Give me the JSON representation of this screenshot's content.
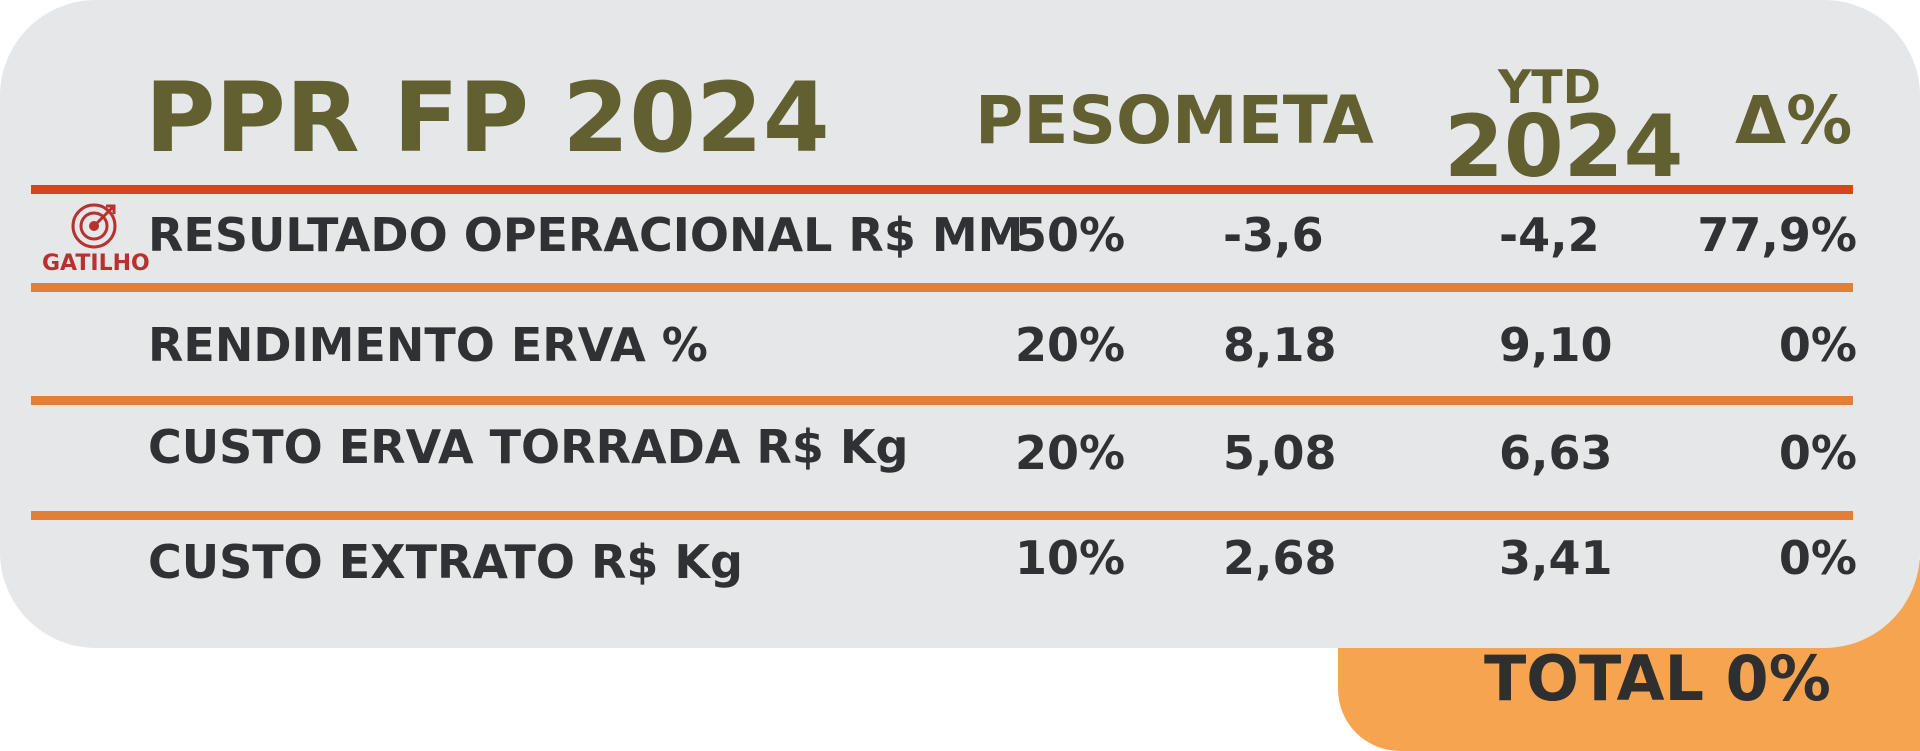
{
  "title": "PPR FP 2024",
  "headers": {
    "peso": "PESO",
    "meta": "META",
    "ytd": "YTD",
    "year": "2024",
    "delta": "Δ%"
  },
  "rows": [
    {
      "label": "RESULTADO OPERACIONAL R$ MM",
      "peso": "50%",
      "meta": "-3,6",
      "ytd": "-4,2",
      "delta": "77,9%",
      "badge": "GATILHO"
    },
    {
      "label": "RENDIMENTO ERVA %",
      "peso": "20%",
      "meta": "8,18",
      "ytd": "9,10",
      "delta": "0%"
    },
    {
      "label": "CUSTO ERVA TORRADA R$ Kg",
      "peso": "20%",
      "meta": "5,08",
      "ytd": "6,63",
      "delta": "0%"
    },
    {
      "label": "CUSTO EXTRATO R$ Kg",
      "peso": "10%",
      "meta": "2,68",
      "ytd": "3,41",
      "delta": "0%"
    }
  ],
  "total": "TOTAL 0%",
  "badge_icon": "target-icon",
  "colors": {
    "panel": "#E6E7E9",
    "title": "#626030",
    "rule_top": "#D2471C",
    "rule": "#E27E35",
    "total_bg": "#F7A451",
    "badge": "#B8312F",
    "text": "#303135"
  }
}
